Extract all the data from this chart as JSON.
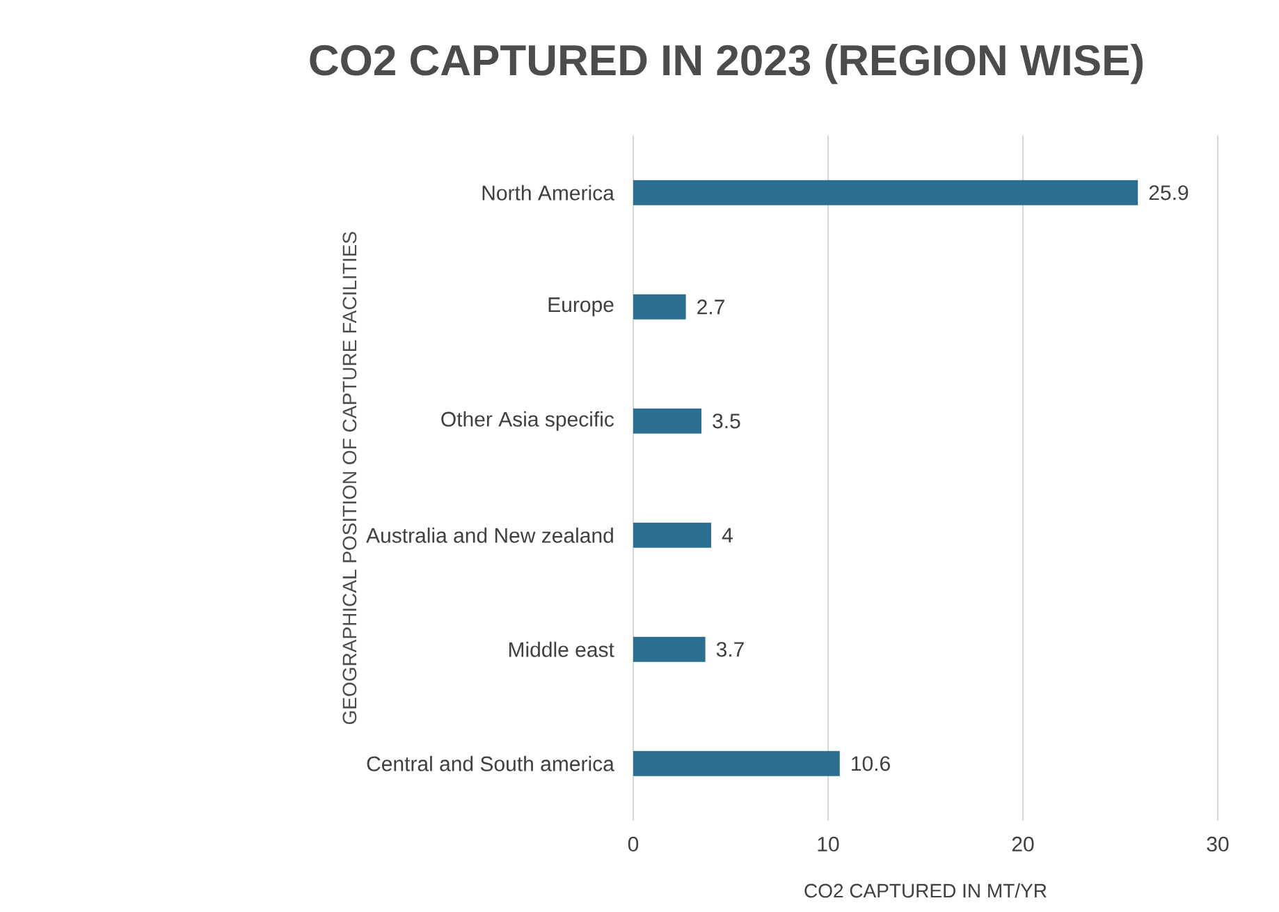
{
  "chart_data": {
    "type": "bar",
    "orientation": "horizontal",
    "title": "CO2 CAPTURED IN 2023 (REGION WISE)",
    "xlabel": "CO2 CAPTURED IN MT/YR",
    "ylabel": "GEOGRAPHICAL    POSITION OF CAPTURE  FACILITIES",
    "categories": [
      "North America",
      "Europe",
      "Other Asia specific",
      "Australia and New zealand",
      "Middle east",
      "Central and South america"
    ],
    "values": [
      25.9,
      2.7,
      3.5,
      4,
      3.7,
      10.6
    ],
    "color": "#2a6e90",
    "xlim": [
      0,
      30
    ],
    "xticks": [
      0,
      10,
      20,
      30
    ],
    "grid": "x",
    "data_labels": true
  }
}
